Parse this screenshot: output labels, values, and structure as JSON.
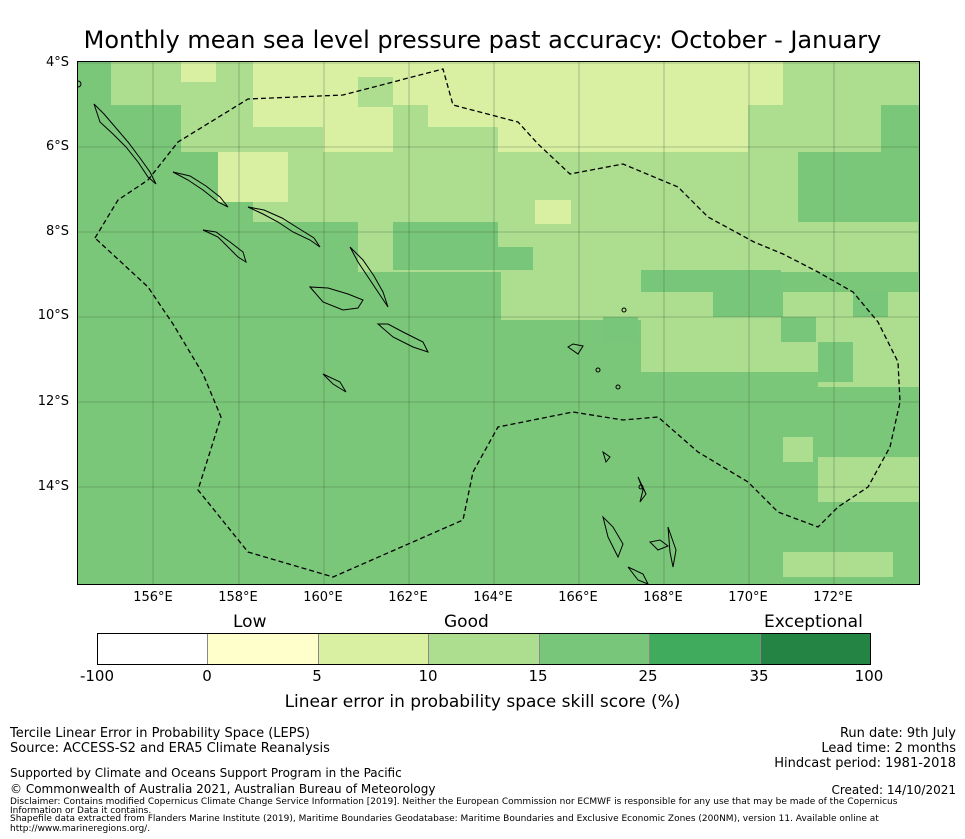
{
  "title": "Monthly mean sea level pressure past accuracy: October - January",
  "map": {
    "lat_labels": [
      "4°S",
      "6°S",
      "8°S",
      "10°S",
      "12°S",
      "14°S"
    ],
    "lon_labels": [
      "156°E",
      "158°E",
      "160°E",
      "162°E",
      "164°E",
      "166°E",
      "168°E",
      "170°E",
      "172°E"
    ],
    "lon_range": [
      154.1,
      173.9
    ],
    "lat_range": [
      -16.3,
      -4.0
    ],
    "base_color": "#7bc77a"
  },
  "legend": {
    "categories": [
      "Low",
      "Good",
      "Exceptional"
    ],
    "ticks": [
      "-100",
      "0",
      "5",
      "10",
      "15",
      "25",
      "35",
      "100"
    ],
    "colors": [
      "#ffffff",
      "#ffffcc",
      "#d9f0a3",
      "#addd8e",
      "#78c679",
      "#41ab5d",
      "#238443"
    ],
    "label": "Linear error in probability space skill score (%)"
  },
  "footer": {
    "line1": "Tercile Linear Error in Probability Space (LEPS)",
    "line2": "Source: ACCESS-S2 and ERA5 Climate Reanalysis",
    "support": "Supported by Climate and Oceans Support Program in the Pacific",
    "copyright": "© Commonwealth of Australia 2021, Australian Bureau of Meteorology",
    "disclaimer1": "Disclaimer: Contains modified Copernicus Climate Change Service Information [2019]. Neither the European Commission nor ECMWF is responsible for any use that may be made of the Copernicus",
    "disclaimer2": "Information or Data it contains.",
    "disclaimer3": "Shapefile data extracted from Flanders Marine Institute (2019), Maritime Boundaries Geodatabase: Maritime Boundaries and Exclusive Economic Zones (200NM), version 11. Available online at",
    "disclaimer4": "http://www.marineregions.org/.",
    "run_date": "Run date: 9th July",
    "lead_time": "Lead time: 2 months",
    "hindcast": "Hindcast period: 1981-2018",
    "created": "Created: 14/10/2021"
  }
}
